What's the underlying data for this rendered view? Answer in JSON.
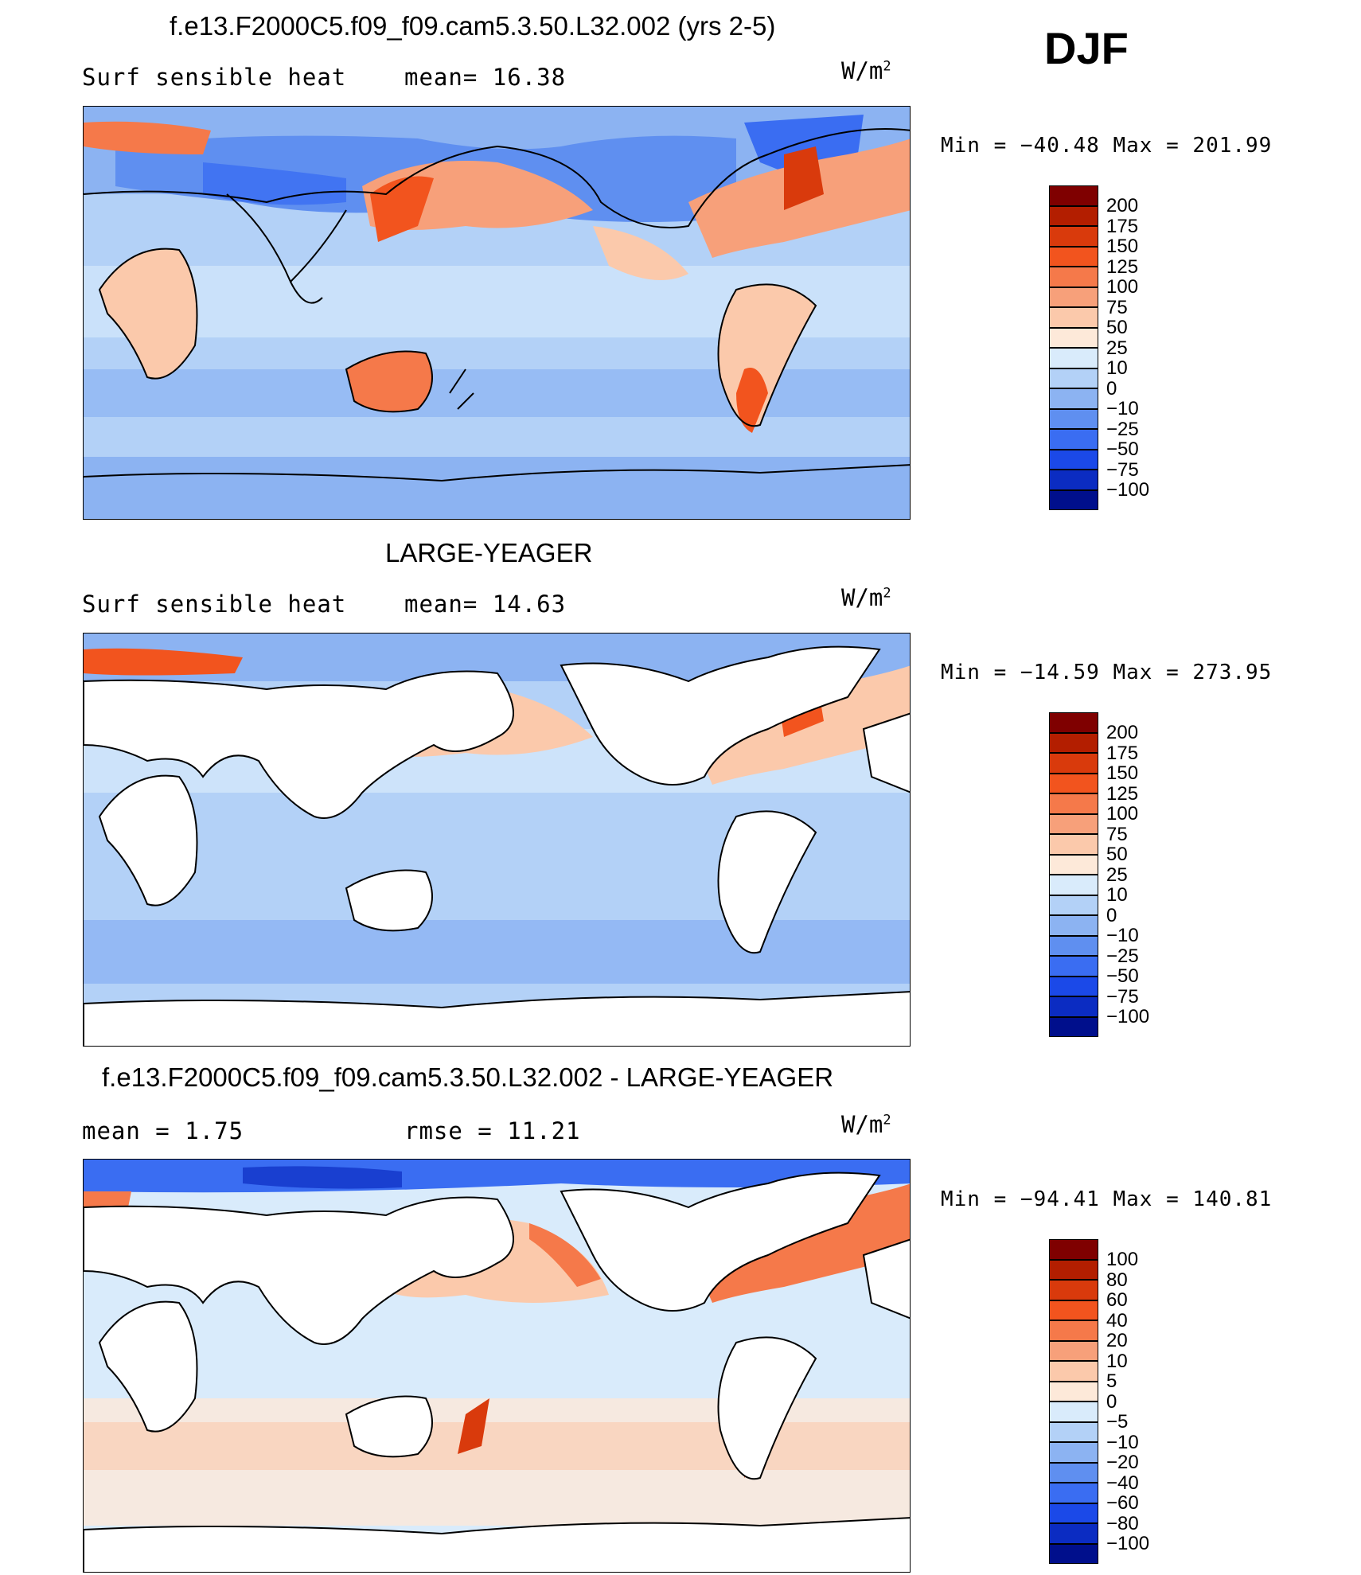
{
  "season": "DJF",
  "panels": [
    {
      "id": "model",
      "title": "f.e13.F2000C5.f09_f09.cam5.3.50.L32.002 (yrs 2-5)",
      "left_label": "Surf  sensible  heat",
      "center_label": "mean=   16.38",
      "units": "W/m",
      "units_sup": "2",
      "minmax": "Min  =  −40.48  Max  =  201.99",
      "colorbar": {
        "colors": [
          "#7f0000",
          "#b31e00",
          "#d93a0c",
          "#f2541e",
          "#f5794a",
          "#f7a07a",
          "#fbc9ab",
          "#fde9d9",
          "#d9ebfb",
          "#b3d1f7",
          "#8cb3f2",
          "#5f8ff0",
          "#3a6df2",
          "#1b49e8",
          "#0b2cc2",
          "#000f8c"
        ],
        "labels": [
          "200",
          "175",
          "150",
          "125",
          "100",
          "75",
          "50",
          "25",
          "10",
          "0",
          "−10",
          "−25",
          "−50",
          "−75",
          "−100"
        ]
      }
    },
    {
      "id": "obs",
      "title": "LARGE-YEAGER",
      "left_label": "Surf  sensible  heat",
      "center_label": "mean=   14.63",
      "units": "W/m",
      "units_sup": "2",
      "minmax": "Min  =  −14.59  Max  =  273.95",
      "colorbar": {
        "colors": [
          "#7f0000",
          "#b31e00",
          "#d93a0c",
          "#f2541e",
          "#f5794a",
          "#f7a07a",
          "#fbc9ab",
          "#fde9d9",
          "#d9ebfb",
          "#b3d1f7",
          "#8cb3f2",
          "#5f8ff0",
          "#3a6df2",
          "#1b49e8",
          "#0b2cc2",
          "#000f8c"
        ],
        "labels": [
          "200",
          "175",
          "150",
          "125",
          "100",
          "75",
          "50",
          "25",
          "10",
          "0",
          "−10",
          "−25",
          "−50",
          "−75",
          "−100"
        ]
      }
    },
    {
      "id": "diff",
      "title": "f.e13.F2000C5.f09_f09.cam5.3.50.L32.002 - LARGE-YEAGER",
      "left_label": "mean  =     1.75",
      "center_label": "rmse  =    11.21",
      "units": "W/m",
      "units_sup": "2",
      "minmax": "Min  =  −94.41  Max  =  140.81",
      "colorbar": {
        "colors": [
          "#7f0000",
          "#b31e00",
          "#d93a0c",
          "#f2541e",
          "#f5794a",
          "#f7a07a",
          "#fbc9ab",
          "#fde9d9",
          "#d9ebfb",
          "#b3d1f7",
          "#8cb3f2",
          "#5f8ff0",
          "#3a6df2",
          "#1b49e8",
          "#0b2cc2",
          "#000f8c"
        ],
        "labels": [
          "100",
          "80",
          "60",
          "40",
          "20",
          "10",
          "5",
          "0",
          "−5",
          "−10",
          "−20",
          "−40",
          "−60",
          "−80",
          "−100"
        ]
      }
    }
  ]
}
